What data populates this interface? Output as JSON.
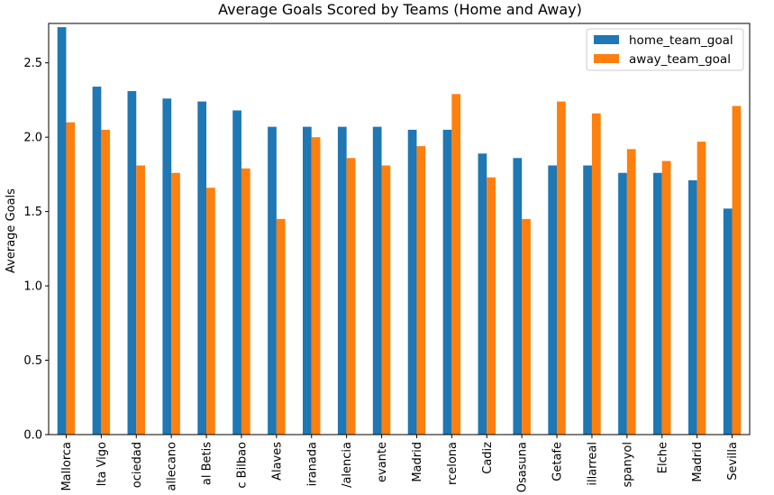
{
  "chart_data": {
    "type": "bar",
    "title": "Average Goals Scored by Teams (Home and Away)",
    "xlabel": "",
    "ylabel": "Average Goals",
    "ylim": [
      0,
      2.765
    ],
    "yticks": [
      0.0,
      0.5,
      1.0,
      1.5,
      2.0,
      2.5
    ],
    "ytick_labels": [
      "0.0",
      "0.5",
      "1.0",
      "1.5",
      "2.0",
      "2.5"
    ],
    "categories": [
      "Mallorca",
      "lta Vigo",
      "ociedad",
      "allecano",
      "al Betis",
      "c Bilbao",
      "Alaves",
      "iranada",
      "/alencia",
      "evante",
      "Madrid",
      "rcelona",
      "Cadiz",
      "Osasuna",
      "Getafe",
      "illarreal",
      "spanyol",
      "Elche",
      "Madrid",
      "Sevilla"
    ],
    "series": [
      {
        "name": "home_team_goal",
        "color": "#1f77b4",
        "values": [
          2.74,
          2.34,
          2.31,
          2.26,
          2.24,
          2.18,
          2.07,
          2.07,
          2.07,
          2.07,
          2.05,
          2.05,
          1.89,
          1.86,
          1.81,
          1.81,
          1.76,
          1.76,
          1.71,
          1.52
        ]
      },
      {
        "name": "away_team_goal",
        "color": "#ff7f0e",
        "values": [
          2.1,
          2.05,
          1.81,
          1.76,
          1.66,
          1.79,
          1.45,
          2.0,
          1.86,
          1.81,
          1.94,
          2.29,
          1.73,
          1.45,
          2.24,
          2.16,
          1.92,
          1.84,
          1.97,
          2.21
        ]
      }
    ],
    "legend_position": "top-right",
    "grid": false
  }
}
